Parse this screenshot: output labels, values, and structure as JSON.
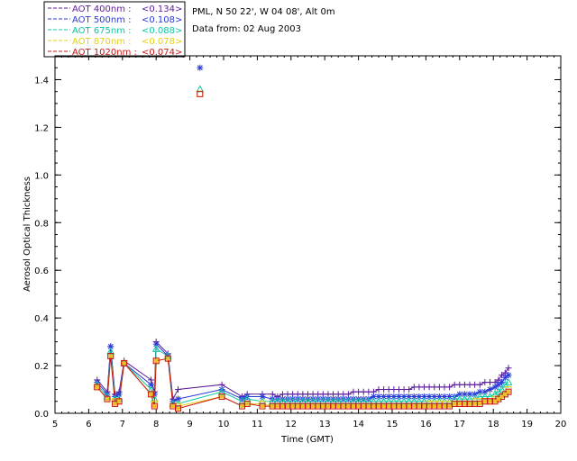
{
  "chart_data": {
    "type": "scatter",
    "title": "",
    "location": "PML, N 50 22', W 04 08', Alt 0m",
    "date_text": "Data from: 02 Aug 2003",
    "xlabel": "Time (GMT)",
    "ylabel": "Aerosol Optical Thickness",
    "xlim": [
      5,
      20
    ],
    "ylim": [
      0,
      1.5
    ],
    "xticks": [
      "5",
      "6",
      "7",
      "8",
      "9",
      "10",
      "11",
      "12",
      "13",
      "14",
      "15",
      "16",
      "17",
      "18",
      "19",
      "20"
    ],
    "yticks": [
      "0.0",
      "0.2",
      "0.4",
      "0.6",
      "0.8",
      "1.0",
      "1.2",
      "1.4"
    ],
    "grid": false,
    "legend_position": "top-left",
    "x": [
      6.25,
      6.55,
      6.65,
      6.78,
      6.9,
      7.05,
      7.85,
      7.95,
      8.0,
      8.35,
      8.5,
      8.65,
      9.95,
      10.55,
      10.7,
      11.15,
      11.45,
      11.6,
      11.75,
      11.9,
      12.05,
      12.2,
      12.35,
      12.5,
      12.65,
      12.8,
      12.95,
      13.1,
      13.25,
      13.4,
      13.55,
      13.7,
      13.85,
      14.0,
      14.15,
      14.3,
      14.45,
      14.6,
      14.75,
      14.9,
      15.05,
      15.2,
      15.35,
      15.5,
      15.65,
      15.8,
      15.95,
      16.1,
      16.25,
      16.4,
      16.55,
      16.7,
      16.85,
      17.0,
      17.15,
      17.3,
      17.45,
      17.6,
      17.75,
      17.9,
      18.05,
      18.15,
      18.25,
      18.35,
      18.45
    ],
    "series": [
      {
        "name": "AOT  400nm",
        "legend_label": "AOT  400nm : ",
        "mean_label": "<0.134>",
        "color": "#5c1a9a",
        "marker": "plus",
        "values": [
          0.14,
          0.09,
          0.28,
          0.08,
          0.09,
          0.22,
          0.14,
          0.09,
          0.3,
          0.25,
          0.06,
          0.1,
          0.12,
          0.07,
          0.08,
          0.08,
          0.08,
          0.07,
          0.08,
          0.08,
          0.08,
          0.08,
          0.08,
          0.08,
          0.08,
          0.08,
          0.08,
          0.08,
          0.08,
          0.08,
          0.08,
          0.08,
          0.09,
          0.09,
          0.09,
          0.09,
          0.09,
          0.1,
          0.1,
          0.1,
          0.1,
          0.1,
          0.1,
          0.1,
          0.11,
          0.11,
          0.11,
          0.11,
          0.11,
          0.11,
          0.11,
          0.11,
          0.12,
          0.12,
          0.12,
          0.12,
          0.12,
          0.12,
          0.13,
          0.13,
          0.13,
          0.14,
          0.16,
          0.17,
          0.19
        ]
      },
      {
        "name": "AOT  500nm",
        "legend_label": "AOT  500nm : ",
        "mean_label": "<0.108>",
        "color": "#2a3ad8",
        "marker": "asterisk",
        "values": [
          0.13,
          0.08,
          0.28,
          0.07,
          0.08,
          0.21,
          0.12,
          0.08,
          0.29,
          0.24,
          0.05,
          0.06,
          0.1,
          0.06,
          0.07,
          0.07,
          0.06,
          0.06,
          0.06,
          0.06,
          0.06,
          0.06,
          0.06,
          0.06,
          0.06,
          0.06,
          0.06,
          0.06,
          0.06,
          0.06,
          0.06,
          0.06,
          0.06,
          0.06,
          0.06,
          0.06,
          0.07,
          0.07,
          0.07,
          0.07,
          0.07,
          0.07,
          0.07,
          0.07,
          0.07,
          0.07,
          0.07,
          0.07,
          0.07,
          0.07,
          0.07,
          0.07,
          0.07,
          0.08,
          0.08,
          0.08,
          0.08,
          0.09,
          0.09,
          0.1,
          0.11,
          0.12,
          0.13,
          0.15,
          0.16
        ]
      },
      {
        "name": "AOT  675nm",
        "legend_label": "AOT  675nm : ",
        "mean_label": "<0.088>",
        "color": "#10c8a0",
        "marker": "triangle",
        "values": [
          0.12,
          0.07,
          0.26,
          0.06,
          0.06,
          0.21,
          0.1,
          0.06,
          0.27,
          0.24,
          0.04,
          0.04,
          0.09,
          0.05,
          0.06,
          0.05,
          0.05,
          0.05,
          0.05,
          0.05,
          0.05,
          0.05,
          0.05,
          0.05,
          0.05,
          0.05,
          0.05,
          0.05,
          0.05,
          0.05,
          0.05,
          0.05,
          0.05,
          0.05,
          0.05,
          0.05,
          0.05,
          0.05,
          0.05,
          0.05,
          0.05,
          0.05,
          0.05,
          0.05,
          0.05,
          0.05,
          0.05,
          0.05,
          0.05,
          0.05,
          0.05,
          0.05,
          0.06,
          0.06,
          0.06,
          0.06,
          0.06,
          0.07,
          0.07,
          0.07,
          0.08,
          0.09,
          0.1,
          0.12,
          0.13
        ]
      },
      {
        "name": "AOT  870nm",
        "legend_label": "AOT  870nm : ",
        "mean_label": "<0.078>",
        "color": "#e6cf14",
        "marker": "square",
        "values": [
          0.11,
          0.06,
          0.24,
          0.05,
          0.05,
          0.21,
          0.08,
          0.04,
          0.22,
          0.23,
          0.03,
          0.03,
          0.07,
          0.03,
          0.04,
          0.04,
          0.03,
          0.03,
          0.03,
          0.03,
          0.03,
          0.03,
          0.03,
          0.03,
          0.03,
          0.03,
          0.03,
          0.03,
          0.03,
          0.03,
          0.03,
          0.03,
          0.03,
          0.03,
          0.03,
          0.03,
          0.03,
          0.03,
          0.03,
          0.03,
          0.03,
          0.03,
          0.03,
          0.03,
          0.03,
          0.03,
          0.03,
          0.04,
          0.04,
          0.04,
          0.04,
          0.04,
          0.04,
          0.04,
          0.04,
          0.04,
          0.05,
          0.05,
          0.05,
          0.05,
          0.06,
          0.06,
          0.07,
          0.08,
          0.1
        ]
      },
      {
        "name": "AOT 1020nm",
        "legend_label": "AOT 1020nm : ",
        "mean_label": "<0.074>",
        "color": "#c81414",
        "marker": "square",
        "values": [
          0.11,
          0.06,
          0.24,
          0.04,
          0.05,
          0.21,
          0.08,
          0.03,
          0.22,
          0.23,
          0.03,
          0.02,
          0.07,
          0.03,
          0.04,
          0.03,
          0.03,
          0.03,
          0.03,
          0.03,
          0.03,
          0.03,
          0.03,
          0.03,
          0.03,
          0.03,
          0.03,
          0.03,
          0.03,
          0.03,
          0.03,
          0.03,
          0.03,
          0.03,
          0.03,
          0.03,
          0.03,
          0.03,
          0.03,
          0.03,
          0.03,
          0.03,
          0.03,
          0.03,
          0.03,
          0.03,
          0.03,
          0.03,
          0.03,
          0.03,
          0.03,
          0.03,
          0.04,
          0.04,
          0.04,
          0.04,
          0.04,
          0.04,
          0.05,
          0.05,
          0.05,
          0.06,
          0.07,
          0.08,
          0.09
        ]
      }
    ],
    "outliers": [
      {
        "series": "AOT  500nm",
        "x": 9.3,
        "y": 1.45
      },
      {
        "series": "AOT  675nm",
        "x": 9.3,
        "y": 1.36
      },
      {
        "series": "AOT  870nm",
        "x": 9.3,
        "y": 1.34
      },
      {
        "series": "AOT 1020nm",
        "x": 9.3,
        "y": 1.34
      }
    ]
  }
}
